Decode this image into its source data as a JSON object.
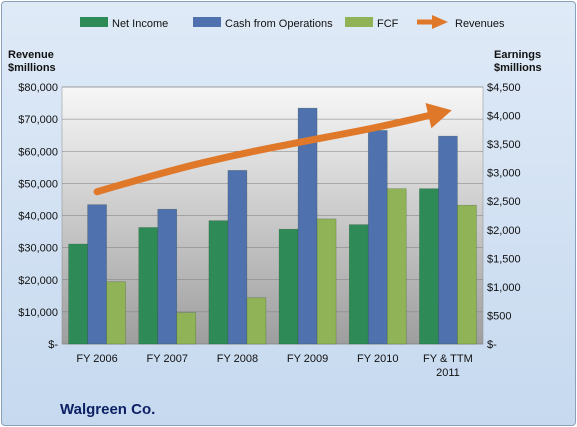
{
  "chart_data": {
    "type": "bar",
    "title": "",
    "company": "Walgreen Co.",
    "categories": [
      [
        "FY 2006"
      ],
      [
        "FY 2007"
      ],
      [
        "FY 2008"
      ],
      [
        "FY 2009"
      ],
      [
        "FY 2010"
      ],
      [
        "FY & TTM",
        "2011"
      ]
    ],
    "left_axis": {
      "title": [
        "Revenue",
        "$millions"
      ],
      "ylim": [
        0,
        80000
      ],
      "ticks": [
        0,
        10000,
        20000,
        30000,
        40000,
        50000,
        60000,
        70000,
        80000
      ],
      "tick_labels": [
        "$-",
        "$10,000",
        "$20,000",
        "$30,000",
        "$40,000",
        "$50,000",
        "$60,000",
        "$70,000",
        "$80,000"
      ]
    },
    "right_axis": {
      "title": [
        "Earnings",
        "$millions"
      ],
      "ylim": [
        0,
        4500
      ],
      "ticks": [
        0,
        500,
        1000,
        1500,
        2000,
        2500,
        3000,
        3500,
        4000,
        4500
      ],
      "tick_labels": [
        "$-",
        "$500",
        "$1,000",
        "$1,500",
        "$2,000",
        "$2,500",
        "$3,000",
        "$3,500",
        "$4,000",
        "$4,500"
      ]
    },
    "bar_series": [
      {
        "name": "Net Income",
        "axis": "right",
        "color": "#2e8b57",
        "values": [
          1750,
          2040,
          2160,
          2010,
          2090,
          2720
        ]
      },
      {
        "name": "Cash from Operations",
        "axis": "right",
        "color": "#4f71ad",
        "values": [
          2440,
          2360,
          3040,
          4130,
          3740,
          3640
        ]
      },
      {
        "name": "FCF",
        "axis": "right",
        "color": "#8fb356",
        "values": [
          1090,
          550,
          810,
          2190,
          2720,
          2430
        ]
      }
    ],
    "line_series": {
      "name": "Revenues",
      "axis": "left",
      "color": "#e0782a",
      "values": [
        47400,
        53800,
        59000,
        63300,
        67400,
        72500
      ]
    },
    "grid": true,
    "legend": "top"
  }
}
